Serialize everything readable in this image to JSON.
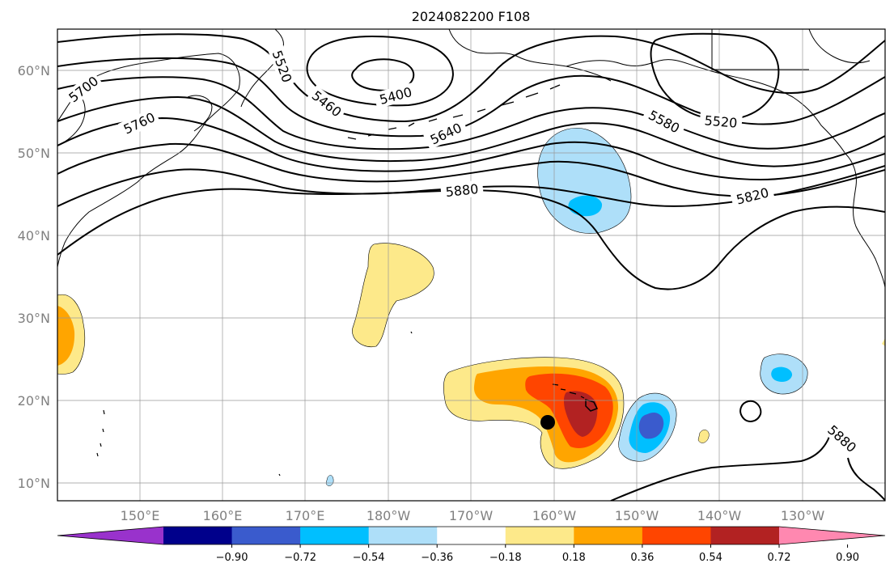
{
  "title": "2024082200 F108",
  "map": {
    "longitude_ticks": [
      "150°E",
      "160°E",
      "170°E",
      "180°W",
      "170°W",
      "160°W",
      "150°W",
      "140°W",
      "130°W"
    ],
    "latitude_ticks": [
      "60°N",
      "50°N",
      "40°N",
      "30°N",
      "20°N",
      "10°N"
    ],
    "contour_labels": [
      "5700",
      "5760",
      "5520",
      "5460",
      "5400",
      "5640",
      "5880",
      "5580",
      "5520",
      "5820",
      "5880"
    ],
    "marker": "storm-center-dot"
  },
  "colorbar": {
    "tick_labels": [
      "−0.90",
      "−0.72",
      "−0.54",
      "−0.36",
      "−0.18",
      "0.18",
      "0.36",
      "0.54",
      "0.72",
      "0.90"
    ],
    "colors": [
      "#9932cc",
      "#00008b",
      "#3a5bcd",
      "#00bfff",
      "#aedff9",
      "#ffffff",
      "#fde98a",
      "#ffa500",
      "#ff4500",
      "#b22222",
      "#ff88b0"
    ]
  }
}
